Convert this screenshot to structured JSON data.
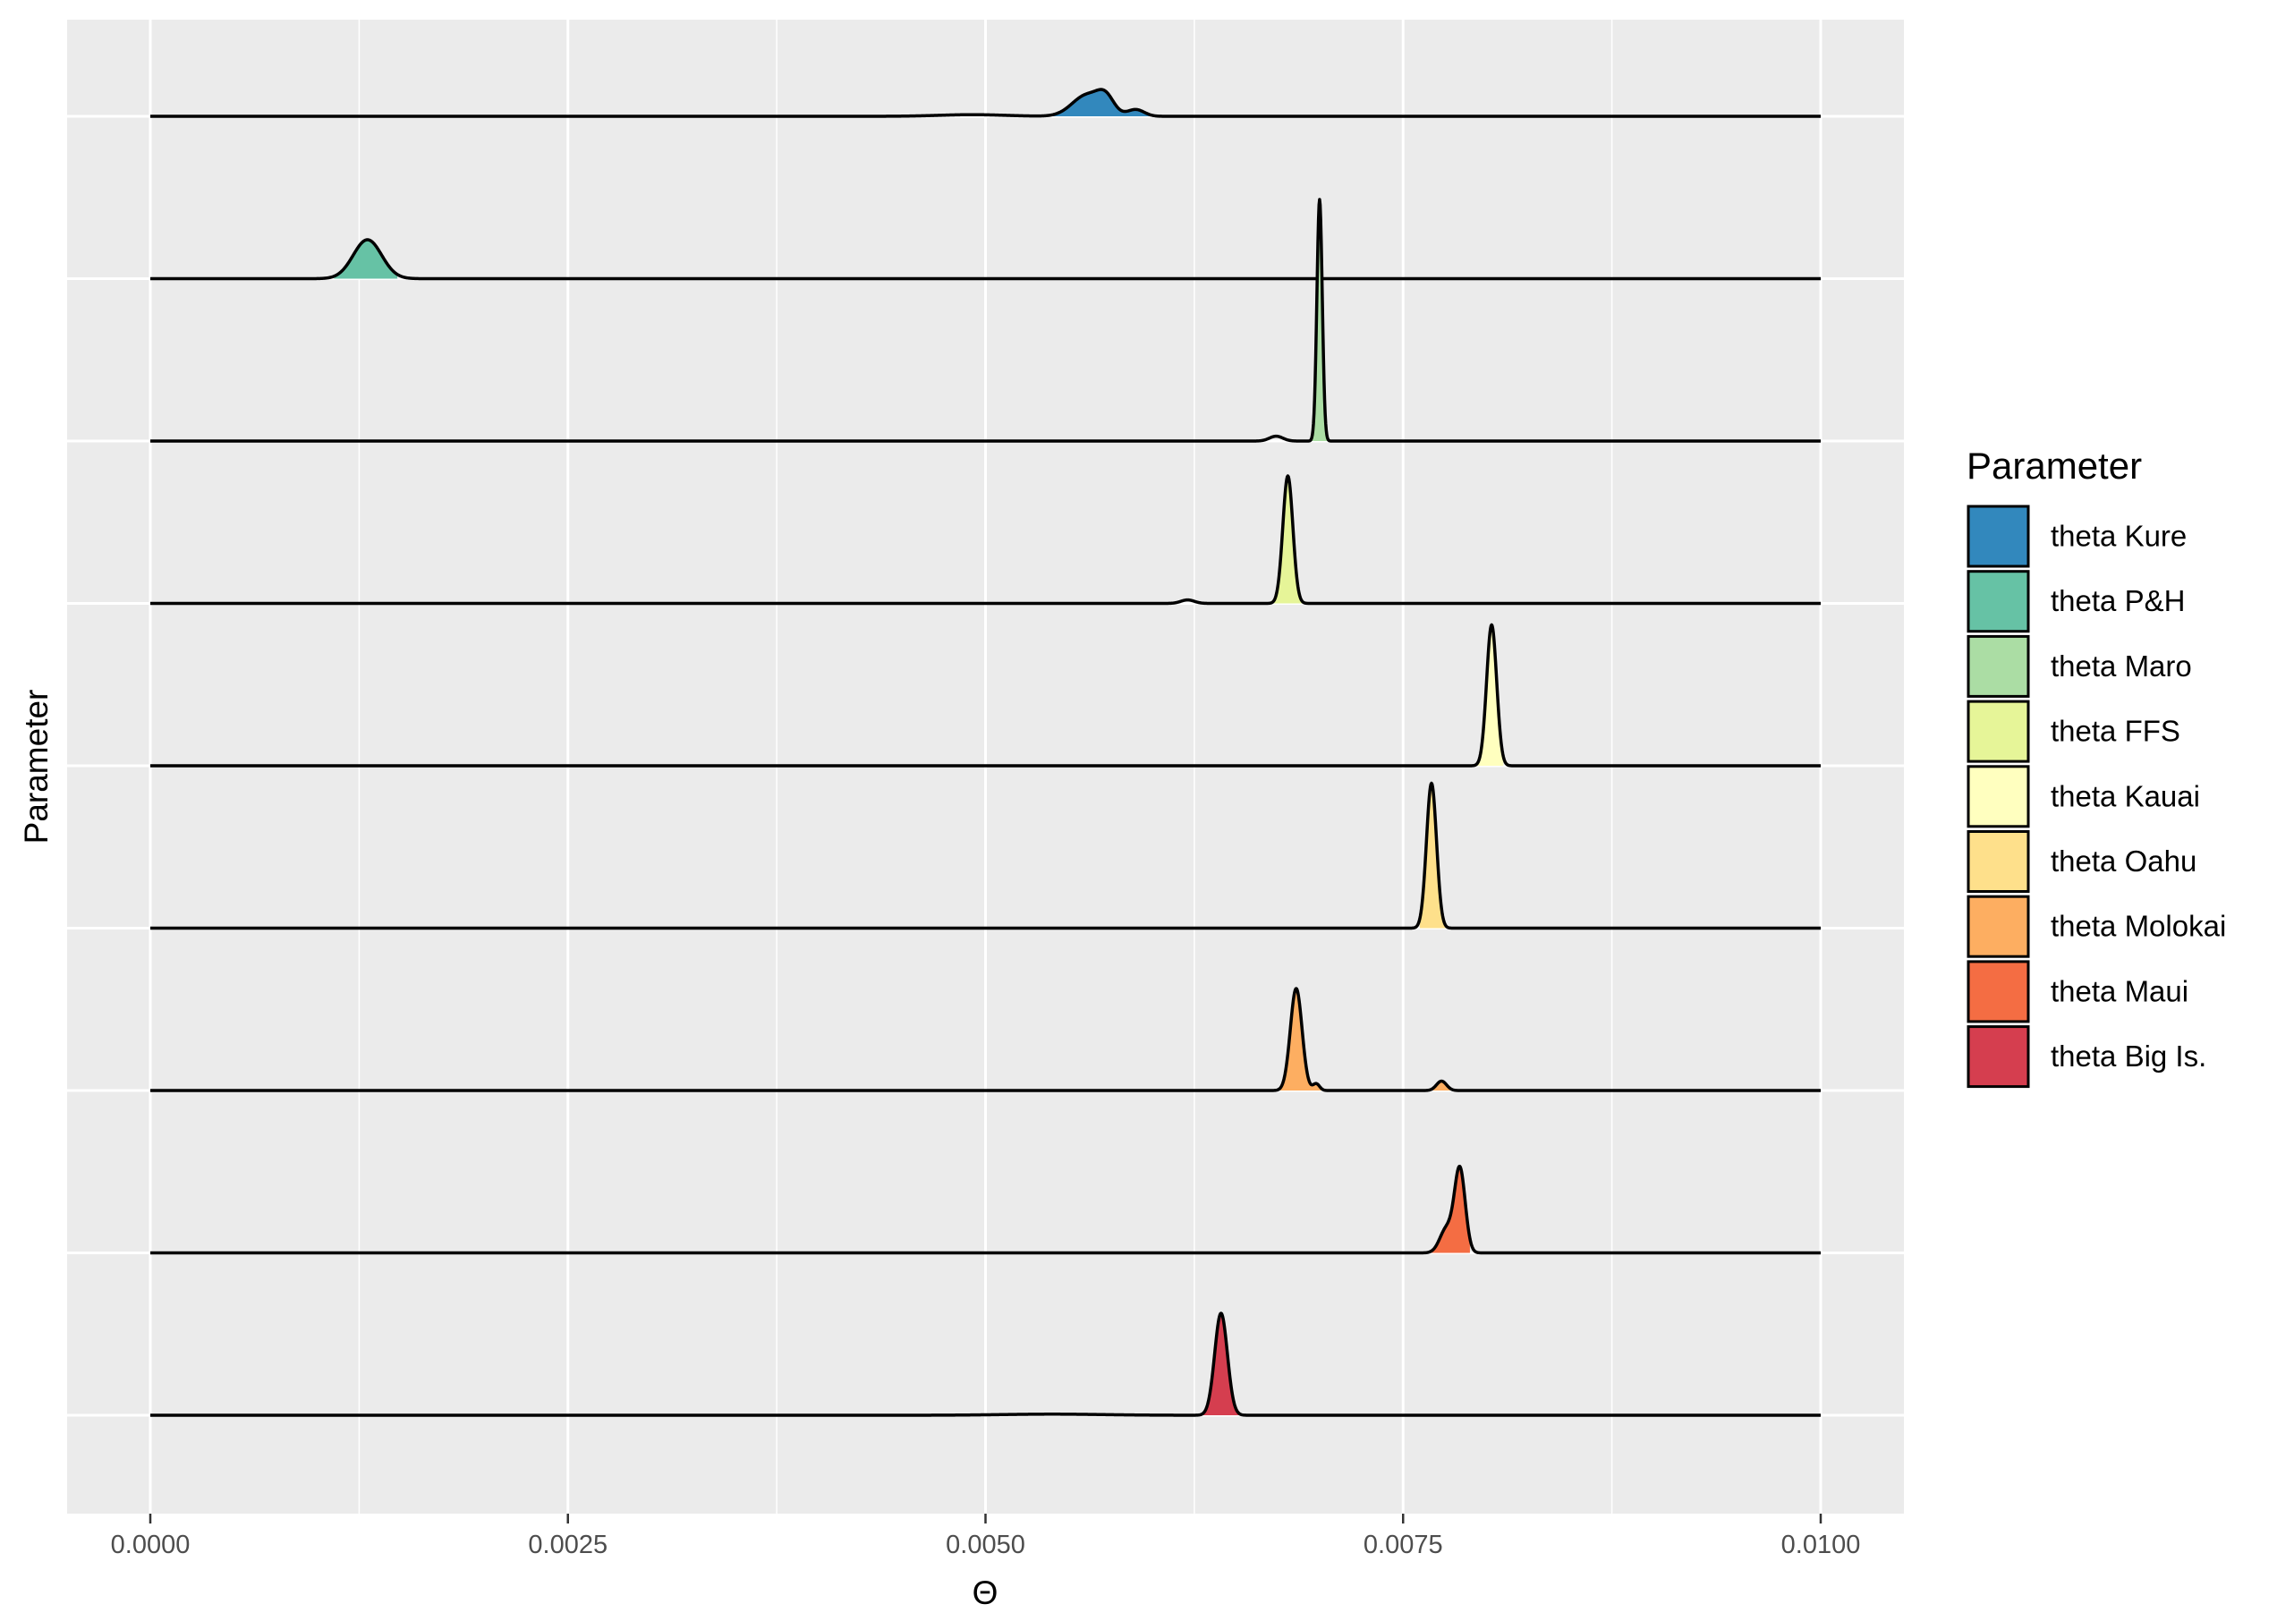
{
  "chart_data": {
    "type": "ridgeline-density",
    "xlabel": "Θ",
    "ylabel": "Parameter",
    "xlim": [
      -0.00025,
      0.0105
    ],
    "x_ticks": [
      0.0,
      0.0025,
      0.005,
      0.0075,
      0.01
    ],
    "x_tick_labels": [
      "0.0000",
      "0.0025",
      "0.0050",
      "0.0075",
      "0.0100"
    ],
    "density_range": [
      0.0,
      0.01
    ],
    "grid": true,
    "legend": {
      "title": "Parameter",
      "position": "right"
    },
    "series": [
      {
        "name": "theta Kure",
        "color": "#3288bd",
        "mode": 0.0057,
        "fill_range": [
          0.0054,
          0.006
        ],
        "components": [
          {
            "mu": 0.00492,
            "sd": 0.0002,
            "h": 0.012
          },
          {
            "mu": 0.00561,
            "sd": 9e-05,
            "h": 0.16
          },
          {
            "mu": 0.00572,
            "sd": 5e-05,
            "h": 0.11
          },
          {
            "mu": 0.0059,
            "sd": 5e-05,
            "h": 0.05
          }
        ]
      },
      {
        "name": "theta P&H",
        "color": "#66c2a5",
        "mode": 0.0013,
        "fill_range": [
          0.0011,
          0.00148
        ],
        "components": [
          {
            "mu": 0.0013,
            "sd": 8.5e-05,
            "h": 0.29
          }
        ]
      },
      {
        "name": "theta Maro",
        "color": "#abdda4",
        "mode": 0.007,
        "fill_range": [
          0.0069,
          0.0071
        ],
        "components": [
          {
            "mu": 0.00674,
            "sd": 4e-05,
            "h": 0.036
          },
          {
            "mu": 0.007,
            "sd": 1.6e-05,
            "h": 1.8
          }
        ]
      },
      {
        "name": "theta FFS",
        "color": "#e6f598",
        "mode": 0.0068,
        "fill_range": [
          0.0067,
          0.0069
        ],
        "components": [
          {
            "mu": 0.00621,
            "sd": 4e-05,
            "h": 0.026
          },
          {
            "mu": 0.00681,
            "sd": 3e-05,
            "h": 0.95
          }
        ]
      },
      {
        "name": "theta Kauai",
        "color": "#ffffbf",
        "mode": 0.008,
        "fill_range": [
          0.0079,
          0.0081
        ],
        "components": [
          {
            "mu": 0.00803,
            "sd": 3e-05,
            "h": 1.05
          }
        ]
      },
      {
        "name": "theta Oahu",
        "color": "#fee08b",
        "mode": 0.0077,
        "fill_range": [
          0.0076,
          0.0078
        ],
        "components": [
          {
            "mu": 0.00767,
            "sd": 3e-05,
            "h": 1.08
          }
        ]
      },
      {
        "name": "theta Molokai",
        "color": "#fdae61",
        "mode": 0.0069,
        "fill_range": [
          0.0067,
          0.0078
        ],
        "components": [
          {
            "mu": 0.00686,
            "sd": 3.5e-05,
            "h": 0.76
          },
          {
            "mu": 0.00698,
            "sd": 2e-05,
            "h": 0.05
          },
          {
            "mu": 0.00773,
            "sd": 3e-05,
            "h": 0.07
          }
        ]
      },
      {
        "name": "theta Maui",
        "color": "#f46d43",
        "mode": 0.0078,
        "fill_range": [
          0.0076,
          0.0079
        ],
        "components": [
          {
            "mu": 0.00776,
            "sd": 4e-05,
            "h": 0.18
          },
          {
            "mu": 0.00784,
            "sd": 3.2e-05,
            "h": 0.62
          }
        ]
      },
      {
        "name": "theta Big Is.",
        "color": "#d53e4f",
        "mode": 0.0064,
        "fill_range": [
          0.0063,
          0.0066
        ],
        "components": [
          {
            "mu": 0.0054,
            "sd": 0.0003,
            "h": 0.008
          },
          {
            "mu": 0.00641,
            "sd": 3.8e-05,
            "h": 0.76
          }
        ]
      }
    ]
  }
}
